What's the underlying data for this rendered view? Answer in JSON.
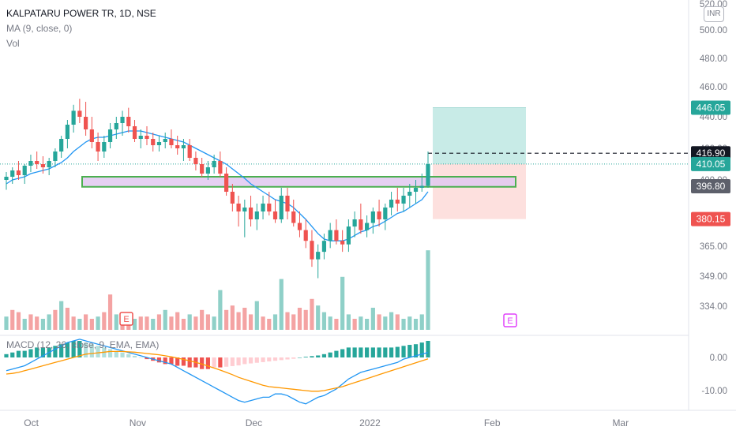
{
  "header": {
    "symbol_line": "KALPATARU POWER TR, 1D, NSE",
    "ma_line": "MA (9, close, 0)",
    "vol_line": "Vol"
  },
  "currency_badge": "INR",
  "macd_label": "MACD (12, 26, close, 9, EMA, EMA)",
  "colors": {
    "up": "#26a69a",
    "down": "#ef5350",
    "vol_up": "#8fd0c8",
    "vol_down": "#f4a3a3",
    "ma_line": "#2196f3",
    "signal_line": "#ff9800",
    "zone_fill": "#e1c8f0",
    "zone_border": "#4caf50",
    "profit_fill": "#c8ebe7",
    "loss_fill": "#fde0de"
  },
  "chart_data": [
    {
      "type": "candlestick",
      "price_axis_ticks": [
        "520.00",
        "500.00",
        "480.00",
        "460.00",
        "440.00",
        "420.00",
        "400.00",
        "380.00",
        "365.00",
        "349.00",
        "334.00"
      ],
      "price_labels": [
        {
          "text": "446.05",
          "value": 446.05,
          "color": "#26a69a"
        },
        {
          "text": "416.90",
          "value": 416.9,
          "color": "#131722"
        },
        {
          "text": "410.05",
          "value": 410.05,
          "color": "#26a69a"
        },
        {
          "text": "396.80",
          "value": 396.8,
          "color": "#5d606b"
        },
        {
          "text": "380.15",
          "value": 380.15,
          "color": "#ef5350"
        }
      ],
      "time_axis": [
        "Oct",
        "Nov",
        "Dec",
        "2022",
        "Feb",
        "Mar"
      ],
      "ohlc": [
        [
          400,
          405,
          395,
          402
        ],
        [
          402,
          408,
          398,
          406
        ],
        [
          406,
          412,
          400,
          403
        ],
        [
          403,
          410,
          398,
          409
        ],
        [
          409,
          416,
          405,
          412
        ],
        [
          412,
          418,
          407,
          410
        ],
        [
          410,
          415,
          404,
          408
        ],
        [
          408,
          414,
          403,
          412
        ],
        [
          412,
          420,
          408,
          418
        ],
        [
          418,
          428,
          414,
          426
        ],
        [
          426,
          438,
          420,
          435
        ],
        [
          435,
          448,
          430,
          444
        ],
        [
          444,
          452,
          436,
          440
        ],
        [
          440,
          450,
          428,
          432
        ],
        [
          432,
          440,
          420,
          424
        ],
        [
          424,
          430,
          412,
          418
        ],
        [
          418,
          428,
          414,
          424
        ],
        [
          424,
          436,
          420,
          432
        ],
        [
          432,
          440,
          426,
          436
        ],
        [
          436,
          444,
          428,
          440
        ],
        [
          440,
          446,
          430,
          434
        ],
        [
          434,
          438,
          424,
          426
        ],
        [
          426,
          432,
          420,
          428
        ],
        [
          428,
          434,
          422,
          426
        ],
        [
          426,
          430,
          418,
          422
        ],
        [
          422,
          428,
          418,
          424
        ],
        [
          424,
          430,
          420,
          426
        ],
        [
          426,
          432,
          420,
          422
        ],
        [
          422,
          428,
          416,
          420
        ],
        [
          420,
          426,
          412,
          422
        ],
        [
          422,
          426,
          412,
          414
        ],
        [
          414,
          418,
          406,
          410
        ],
        [
          410,
          414,
          402,
          404
        ],
        [
          404,
          412,
          400,
          408
        ],
        [
          408,
          416,
          404,
          412
        ],
        [
          412,
          418,
          402,
          404
        ],
        [
          404,
          408,
          392,
          394
        ],
        [
          394,
          398,
          384,
          388
        ],
        [
          388,
          392,
          376,
          384
        ],
        [
          384,
          390,
          370,
          386
        ],
        [
          386,
          392,
          376,
          380
        ],
        [
          380,
          388,
          374,
          384
        ],
        [
          384,
          392,
          380,
          388
        ],
        [
          388,
          394,
          382,
          384
        ],
        [
          384,
          390,
          378,
          380
        ],
        [
          380,
          396,
          378,
          392
        ],
        [
          392,
          396,
          380,
          384
        ],
        [
          384,
          390,
          376,
          378
        ],
        [
          378,
          384,
          370,
          374
        ],
        [
          374,
          380,
          364,
          368
        ],
        [
          368,
          374,
          354,
          358
        ],
        [
          358,
          366,
          348,
          362
        ],
        [
          362,
          372,
          358,
          368
        ],
        [
          368,
          378,
          364,
          374
        ],
        [
          374,
          380,
          366,
          368
        ],
        [
          368,
          374,
          362,
          366
        ],
        [
          366,
          380,
          362,
          376
        ],
        [
          376,
          384,
          370,
          380
        ],
        [
          380,
          388,
          372,
          374
        ],
        [
          374,
          382,
          370,
          378
        ],
        [
          378,
          386,
          372,
          384
        ],
        [
          384,
          390,
          376,
          380
        ],
        [
          380,
          388,
          374,
          386
        ],
        [
          386,
          394,
          382,
          390
        ],
        [
          390,
          396,
          384,
          388
        ],
        [
          388,
          396,
          384,
          392
        ],
        [
          392,
          398,
          386,
          394
        ],
        [
          394,
          400,
          388,
          396
        ],
        [
          396,
          404,
          394,
          397
        ],
        [
          397,
          418,
          396,
          410
        ]
      ],
      "ma_values": [
        398,
        400,
        401,
        402,
        404,
        405,
        406,
        407,
        409,
        411,
        414,
        418,
        421,
        424,
        426,
        427,
        427,
        428,
        429,
        430,
        431,
        431,
        431,
        430,
        429,
        428,
        427,
        426,
        425,
        424,
        422,
        420,
        418,
        416,
        414,
        412,
        410,
        407,
        404,
        401,
        398,
        396,
        394,
        392,
        390,
        389,
        388,
        386,
        383,
        380,
        376,
        372,
        369,
        368,
        368,
        368,
        369,
        371,
        373,
        374,
        376,
        377,
        379,
        381,
        383,
        384,
        386,
        388,
        390,
        394
      ],
      "volume": [
        {
          "v": 0.6,
          "up": true
        },
        {
          "v": 0.9,
          "up": false
        },
        {
          "v": 0.8,
          "up": false
        },
        {
          "v": 0.5,
          "up": true
        },
        {
          "v": 0.7,
          "up": false
        },
        {
          "v": 0.6,
          "up": false
        },
        {
          "v": 0.5,
          "up": true
        },
        {
          "v": 0.7,
          "up": true
        },
        {
          "v": 0.9,
          "up": false
        },
        {
          "v": 1.3,
          "up": true
        },
        {
          "v": 1.0,
          "up": false
        },
        {
          "v": 0.6,
          "up": false
        },
        {
          "v": 0.5,
          "up": true
        },
        {
          "v": 0.7,
          "up": false
        },
        {
          "v": 0.5,
          "up": false
        },
        {
          "v": 0.6,
          "up": true
        },
        {
          "v": 0.8,
          "up": false
        },
        {
          "v": 1.6,
          "up": false
        },
        {
          "v": 0.7,
          "up": true
        },
        {
          "v": 0.5,
          "up": false
        },
        {
          "v": 0.4,
          "up": false
        },
        {
          "v": 0.5,
          "up": true
        },
        {
          "v": 0.6,
          "up": false
        },
        {
          "v": 0.6,
          "up": false
        },
        {
          "v": 0.5,
          "up": true
        },
        {
          "v": 0.7,
          "up": false
        },
        {
          "v": 0.9,
          "up": true
        },
        {
          "v": 0.6,
          "up": false
        },
        {
          "v": 0.8,
          "up": false
        },
        {
          "v": 0.5,
          "up": false
        },
        {
          "v": 0.7,
          "up": true
        },
        {
          "v": 0.6,
          "up": false
        },
        {
          "v": 0.9,
          "up": false
        },
        {
          "v": 0.7,
          "up": false
        },
        {
          "v": 0.6,
          "up": true
        },
        {
          "v": 1.8,
          "up": true
        },
        {
          "v": 0.9,
          "up": false
        },
        {
          "v": 1.1,
          "up": false
        },
        {
          "v": 0.8,
          "up": false
        },
        {
          "v": 1.0,
          "up": false
        },
        {
          "v": 0.7,
          "up": false
        },
        {
          "v": 1.3,
          "up": true
        },
        {
          "v": 0.6,
          "up": false
        },
        {
          "v": 0.5,
          "up": false
        },
        {
          "v": 0.7,
          "up": true
        },
        {
          "v": 2.3,
          "up": true
        },
        {
          "v": 0.8,
          "up": false
        },
        {
          "v": 0.7,
          "up": false
        },
        {
          "v": 1.0,
          "up": false
        },
        {
          "v": 0.9,
          "up": false
        },
        {
          "v": 1.4,
          "up": false
        },
        {
          "v": 1.1,
          "up": true
        },
        {
          "v": 0.8,
          "up": true
        },
        {
          "v": 0.6,
          "up": true
        },
        {
          "v": 0.5,
          "up": false
        },
        {
          "v": 2.4,
          "up": true
        },
        {
          "v": 0.7,
          "up": true
        },
        {
          "v": 0.5,
          "up": false
        },
        {
          "v": 0.6,
          "up": true
        },
        {
          "v": 0.5,
          "up": true
        },
        {
          "v": 1.0,
          "up": true
        },
        {
          "v": 0.7,
          "up": false
        },
        {
          "v": 0.6,
          "up": true
        },
        {
          "v": 0.8,
          "up": true
        },
        {
          "v": 0.7,
          "up": false
        },
        {
          "v": 0.5,
          "up": true
        },
        {
          "v": 0.6,
          "up": true
        },
        {
          "v": 0.5,
          "up": true
        },
        {
          "v": 0.7,
          "up": true
        },
        {
          "v": 3.6,
          "up": true
        }
      ],
      "support_zone": {
        "low": 396.5,
        "high": 402
      },
      "position": {
        "entry": 410.05,
        "target": 446.05,
        "stop": 380.15,
        "last": 416.9
      }
    },
    {
      "type": "macd",
      "axis_ticks": [
        "0.00",
        "-10.00"
      ],
      "histogram": [
        1,
        1.5,
        2,
        2,
        2.5,
        3,
        3,
        3,
        3.5,
        4,
        4.5,
        5,
        5,
        4.5,
        4,
        3.5,
        3,
        2.5,
        2,
        1.5,
        1,
        0.5,
        0,
        -0.5,
        -1,
        -1.5,
        -2,
        -2,
        -2.5,
        -2.5,
        -3,
        -3,
        -3.5,
        -3.5,
        -3,
        -3,
        -2.8,
        -2.6,
        -2.4,
        -2,
        -1.8,
        -1.6,
        -1.4,
        -1.2,
        -1,
        -0.8,
        -0.6,
        -0.4,
        0,
        0.2,
        0.4,
        0.6,
        1,
        1.5,
        2,
        2.5,
        3,
        3,
        3,
        3,
        3,
        3,
        3,
        3,
        3.2,
        3.5,
        3.8,
        4,
        4.5,
        5
      ],
      "macd_line": [
        -4,
        -3.5,
        -3,
        -2.5,
        -1.5,
        -0.5,
        0.5,
        1.5,
        2.5,
        3.5,
        4.5,
        5,
        5.5,
        5,
        4.5,
        4,
        3.5,
        3,
        2.5,
        2,
        1.5,
        1,
        0.5,
        0,
        -0.5,
        -1,
        -1.5,
        -2,
        -3,
        -4,
        -5,
        -6,
        -7,
        -8,
        -9,
        -10,
        -11,
        -12,
        -13,
        -13.5,
        -13,
        -12.5,
        -12,
        -12,
        -11,
        -11,
        -11.5,
        -12.5,
        -13.5,
        -14,
        -13,
        -12,
        -11.5,
        -10.5,
        -9.5,
        -8,
        -6.5,
        -5.5,
        -4.5,
        -4,
        -3.5,
        -3,
        -2.5,
        -2,
        -1.5,
        -0.5,
        0,
        0.5,
        1,
        1.5
      ],
      "signal_line": [
        -5,
        -4.8,
        -4.5,
        -4,
        -3.5,
        -3,
        -2.5,
        -2,
        -1.5,
        -1,
        -0.5,
        0,
        0.5,
        1,
        1.2,
        1.4,
        1.6,
        1.8,
        1.8,
        1.8,
        1.7,
        1.6,
        1.4,
        1.2,
        1,
        0.8,
        0.5,
        0.2,
        -0.2,
        -0.6,
        -1,
        -1.5,
        -2,
        -2.6,
        -3.2,
        -3.8,
        -4.5,
        -5.2,
        -6,
        -6.6,
        -7.2,
        -7.8,
        -8.4,
        -8.8,
        -9,
        -9.2,
        -9.4,
        -9.6,
        -9.8,
        -10,
        -10.2,
        -10.2,
        -10,
        -9.6,
        -9.2,
        -8.8,
        -8.2,
        -7.6,
        -7,
        -6.4,
        -5.8,
        -5.2,
        -4.6,
        -4,
        -3.4,
        -2.8,
        -2.2,
        -1.6,
        -1,
        -0.4
      ]
    }
  ]
}
